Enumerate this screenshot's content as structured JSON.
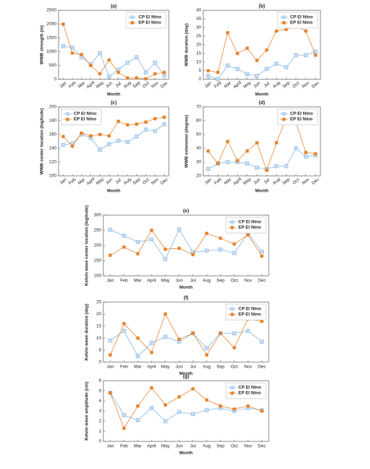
{
  "chart_data": [
    {
      "type": "line",
      "title": "(a)",
      "xlabel": "Month",
      "ylabel": "WWB strength (m)",
      "legend": "upper right",
      "categories": [
        "Jan",
        "Feb",
        "Mar",
        "April",
        "May",
        "Jun",
        "Jul",
        "Aug",
        "Sep",
        "Oct",
        "Nov",
        "Dec"
      ],
      "ylim": [
        0,
        2500
      ],
      "yticks": [
        0,
        500,
        1000,
        1500,
        2000,
        2500
      ],
      "series": [
        {
          "name": "CP El Nino",
          "color": "#7fb2e5",
          "values": [
            1200,
            1150,
            800,
            550,
            950,
            100,
            350,
            600,
            800,
            250,
            600,
            150
          ]
        },
        {
          "name": "EP El Nino",
          "color": "#e8822a",
          "values": [
            2000,
            950,
            900,
            500,
            200,
            700,
            250,
            50,
            50,
            20,
            200,
            250
          ]
        }
      ]
    },
    {
      "type": "line",
      "title": "(b)",
      "xlabel": "Month",
      "ylabel": "WWB duration (day)",
      "legend": "upper right",
      "categories": [
        "Jan",
        "Feb",
        "Mar",
        "April",
        "May",
        "Jun",
        "Jul",
        "Aug",
        "Sep",
        "Oct",
        "Nov",
        "Dec"
      ],
      "ylim": [
        0,
        40
      ],
      "yticks": [
        0,
        5,
        10,
        15,
        20,
        25,
        30,
        35,
        40
      ],
      "series": [
        {
          "name": "CP El Nino",
          "color": "#7fb2e5",
          "values": [
            2,
            0,
            8,
            6,
            3,
            2,
            6,
            9,
            7,
            14,
            14,
            16
          ]
        },
        {
          "name": "EP El Nino",
          "color": "#e8822a",
          "values": [
            5,
            4,
            27,
            15,
            18,
            11,
            17,
            28,
            29,
            31,
            28,
            14
          ]
        }
      ]
    },
    {
      "type": "line",
      "title": "(c)",
      "xlabel": "Month",
      "ylabel": "WWB center location (logitude)",
      "legend": "upper left",
      "categories": [
        "Jan",
        "Feb",
        "Mar",
        "April",
        "May",
        "Jun",
        "Jul",
        "Aug",
        "Sep",
        "Oct",
        "Nov",
        "Dec"
      ],
      "ylim": [
        100,
        200
      ],
      "yticks": [
        100,
        120,
        140,
        160,
        180,
        200
      ],
      "series": [
        {
          "name": "CP El Nino",
          "color": "#7fb2e5",
          "values": [
            145,
            147,
            160,
            155,
            138,
            146,
            151,
            149,
            157,
            167,
            165,
            175
          ]
        },
        {
          "name": "EP El Nino",
          "color": "#e8822a",
          "values": [
            157,
            143,
            162,
            158,
            160,
            158,
            179,
            174,
            175,
            178,
            183,
            185
          ]
        }
      ]
    },
    {
      "type": "line",
      "title": "(d)",
      "xlabel": "Month",
      "ylabel": "WWB extension (degree)",
      "legend": "upper right",
      "categories": [
        "Jan",
        "Feb",
        "Mar",
        "April",
        "May",
        "Jun",
        "Jul",
        "Aug",
        "Sep",
        "Oct",
        "Nov",
        "Dec"
      ],
      "ylim": [
        20,
        70
      ],
      "yticks": [
        20,
        30,
        40,
        50,
        60,
        70
      ],
      "series": [
        {
          "name": "CP El Nino",
          "color": "#7fb2e5",
          "values": [
            25,
            29,
            30,
            30,
            29,
            26,
            25,
            27,
            27,
            40,
            34,
            35
          ]
        },
        {
          "name": "EP El Nino",
          "color": "#e8822a",
          "values": [
            38,
            29,
            45,
            31,
            38,
            44,
            24,
            44,
            62,
            59,
            37,
            36
          ]
        }
      ]
    },
    {
      "type": "line",
      "title": "(e)",
      "xlabel": "Month",
      "ylabel": "Kelvin wave center location (logitude)",
      "legend": "upper right",
      "categories": [
        "Jan",
        "Feb",
        "Mar",
        "April",
        "May",
        "Jun",
        "Jul",
        "Aug",
        "Sep",
        "Oct",
        "Nov",
        "Dec"
      ],
      "ylim": [
        100,
        300
      ],
      "yticks": [
        100,
        150,
        200,
        250,
        300
      ],
      "series": [
        {
          "name": "CP El Nino",
          "color": "#7fb2e5",
          "values": [
            252,
            232,
            212,
            220,
            155,
            253,
            178,
            183,
            187,
            175,
            240,
            180
          ]
        },
        {
          "name": "EP El Nino",
          "color": "#e8822a",
          "values": [
            168,
            195,
            173,
            250,
            188,
            191,
            170,
            240,
            224,
            205,
            235,
            165
          ]
        }
      ]
    },
    {
      "type": "line",
      "title": "(f)",
      "xlabel": "Month",
      "ylabel": "Kelvin wave duration (day)",
      "legend": "upper right",
      "categories": [
        "Jan",
        "Feb",
        "Mar",
        "April",
        "May",
        "Jun",
        "Jul",
        "Aug",
        "Sep",
        "Oct",
        "Nov",
        "Dec"
      ],
      "ylim": [
        0,
        25
      ],
      "yticks": [
        0,
        5,
        10,
        15,
        20,
        25
      ],
      "series": [
        {
          "name": "CP El Nino",
          "color": "#7fb2e5",
          "values": [
            9,
            13,
            2.5,
            8,
            10.5,
            8.5,
            12,
            5.8,
            12,
            12,
            13,
            8.5
          ]
        },
        {
          "name": "EP El Nino",
          "color": "#e8822a",
          "values": [
            3,
            16,
            10,
            4,
            20,
            9.5,
            12,
            3,
            12,
            6,
            18,
            17
          ]
        }
      ]
    },
    {
      "type": "line",
      "title": "(g)",
      "xlabel": "Month",
      "ylabel": "Kelvin wave amplitude (cm)",
      "legend": "upper right",
      "categories": [
        "Jan",
        "Feb",
        "Mar",
        "April",
        "May",
        "Jun",
        "Jul",
        "Aug",
        "Sep",
        "Oct",
        "Nov",
        "Dec"
      ],
      "ylim": [
        0,
        6
      ],
      "yticks": [
        0,
        1,
        2,
        3,
        4,
        5,
        6
      ],
      "series": [
        {
          "name": "CP El Nino",
          "color": "#7fb2e5",
          "values": [
            4.8,
            2.6,
            2.1,
            3.3,
            2.0,
            2.9,
            2.7,
            3.1,
            3.3,
            3.0,
            3.3,
            3.1
          ]
        },
        {
          "name": "EP El Nino",
          "color": "#e8822a",
          "values": [
            4.8,
            1.3,
            3.5,
            5.3,
            3.6,
            4.4,
            5.2,
            4.1,
            3.5,
            3.2,
            3.5,
            3.0
          ]
        }
      ]
    }
  ]
}
